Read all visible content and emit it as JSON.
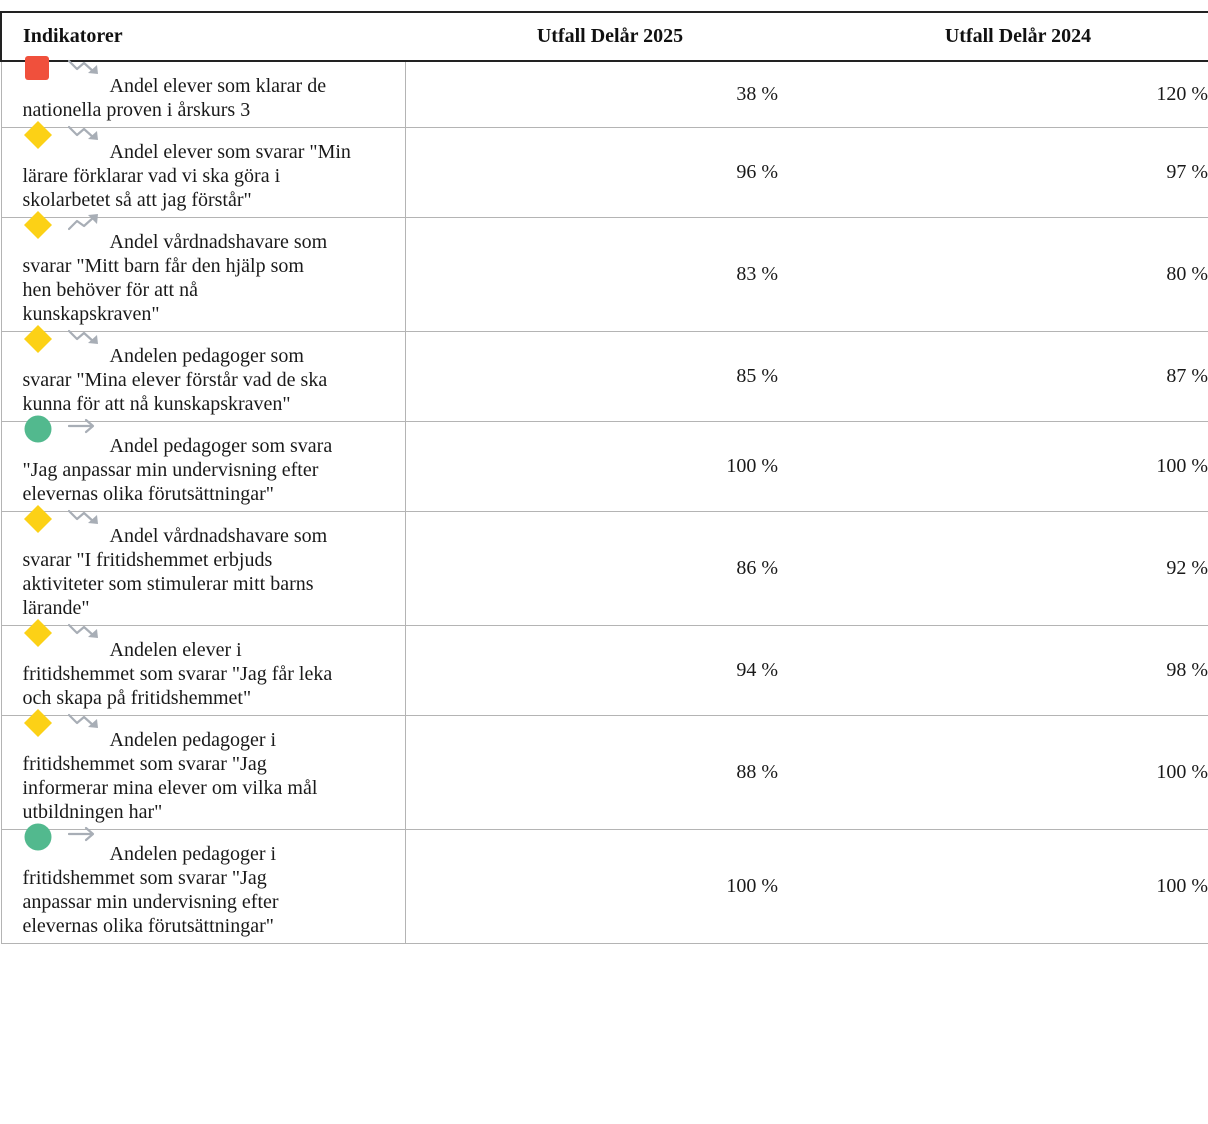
{
  "table": {
    "headers": [
      "Indikatorer",
      "Utfall Delår 2025",
      "Utfall Delår 2024"
    ],
    "rows": [
      {
        "status": "red-square-icon",
        "trend": "trend-down-icon",
        "lines": [
          "Andel elever som klarar de",
          "nationella proven i årskurs 3"
        ],
        "v2025": "38 %",
        "v2024": "120 %"
      },
      {
        "status": "yellow-diamond-icon",
        "trend": "trend-down-icon",
        "lines": [
          "Andel elever som svarar \"Min",
          "lärare förklarar vad vi ska göra i",
          "skolarbetet så att jag förstår\""
        ],
        "v2025": "96 %",
        "v2024": "97 %"
      },
      {
        "status": "yellow-diamond-icon",
        "trend": "trend-up-icon",
        "lines": [
          "Andel vårdnadshavare som",
          "svarar \"Mitt barn får den hjälp som",
          "hen behöver för att nå",
          "kunskapskraven\""
        ],
        "v2025": "83 %",
        "v2024": "80 %"
      },
      {
        "status": "yellow-diamond-icon",
        "trend": "trend-down-icon",
        "lines": [
          "Andelen pedagoger som",
          "svarar \"Mina elever förstår vad de ska",
          "kunna för att nå kunskapskraven\""
        ],
        "v2025": "85 %",
        "v2024": "87 %"
      },
      {
        "status": "green-circle-icon",
        "trend": "trend-flat-icon",
        "lines": [
          "Andel pedagoger som svara",
          "\"Jag anpassar min undervisning efter",
          "elevernas olika förutsättningar\""
        ],
        "v2025": "100 %",
        "v2024": "100 %"
      },
      {
        "status": "yellow-diamond-icon",
        "trend": "trend-down-icon",
        "lines": [
          "Andel vårdnadshavare som",
          "svarar \"I fritidshemmet erbjuds",
          "aktiviteter som stimulerar mitt barns",
          "lärande\""
        ],
        "v2025": "86 %",
        "v2024": "92 %"
      },
      {
        "status": "yellow-diamond-icon",
        "trend": "trend-down-icon",
        "lines": [
          "Andelen elever i",
          "fritidshemmet som svarar \"Jag får leka",
          "och skapa på fritidshemmet\""
        ],
        "v2025": "94 %",
        "v2024": "98 %"
      },
      {
        "status": "yellow-diamond-icon",
        "trend": "trend-down-icon",
        "lines": [
          "Andelen pedagoger i",
          "fritidshemmet som svarar \"Jag",
          "informerar mina elever om vilka mål",
          "utbildningen har\""
        ],
        "v2025": "88 %",
        "v2024": "100 %"
      },
      {
        "status": "green-circle-icon",
        "trend": "trend-flat-icon",
        "lines": [
          "Andelen pedagoger i",
          "fritidshemmet som svarar \"Jag",
          "anpassar min undervisning efter",
          "elevernas olika förutsättningar\""
        ],
        "v2025": "100 %",
        "v2024": "100 %"
      }
    ]
  },
  "colors": {
    "red": "#f0503c",
    "yellow": "#fcd116",
    "green": "#52b98e",
    "trend_gray": "#a8aeb6"
  }
}
